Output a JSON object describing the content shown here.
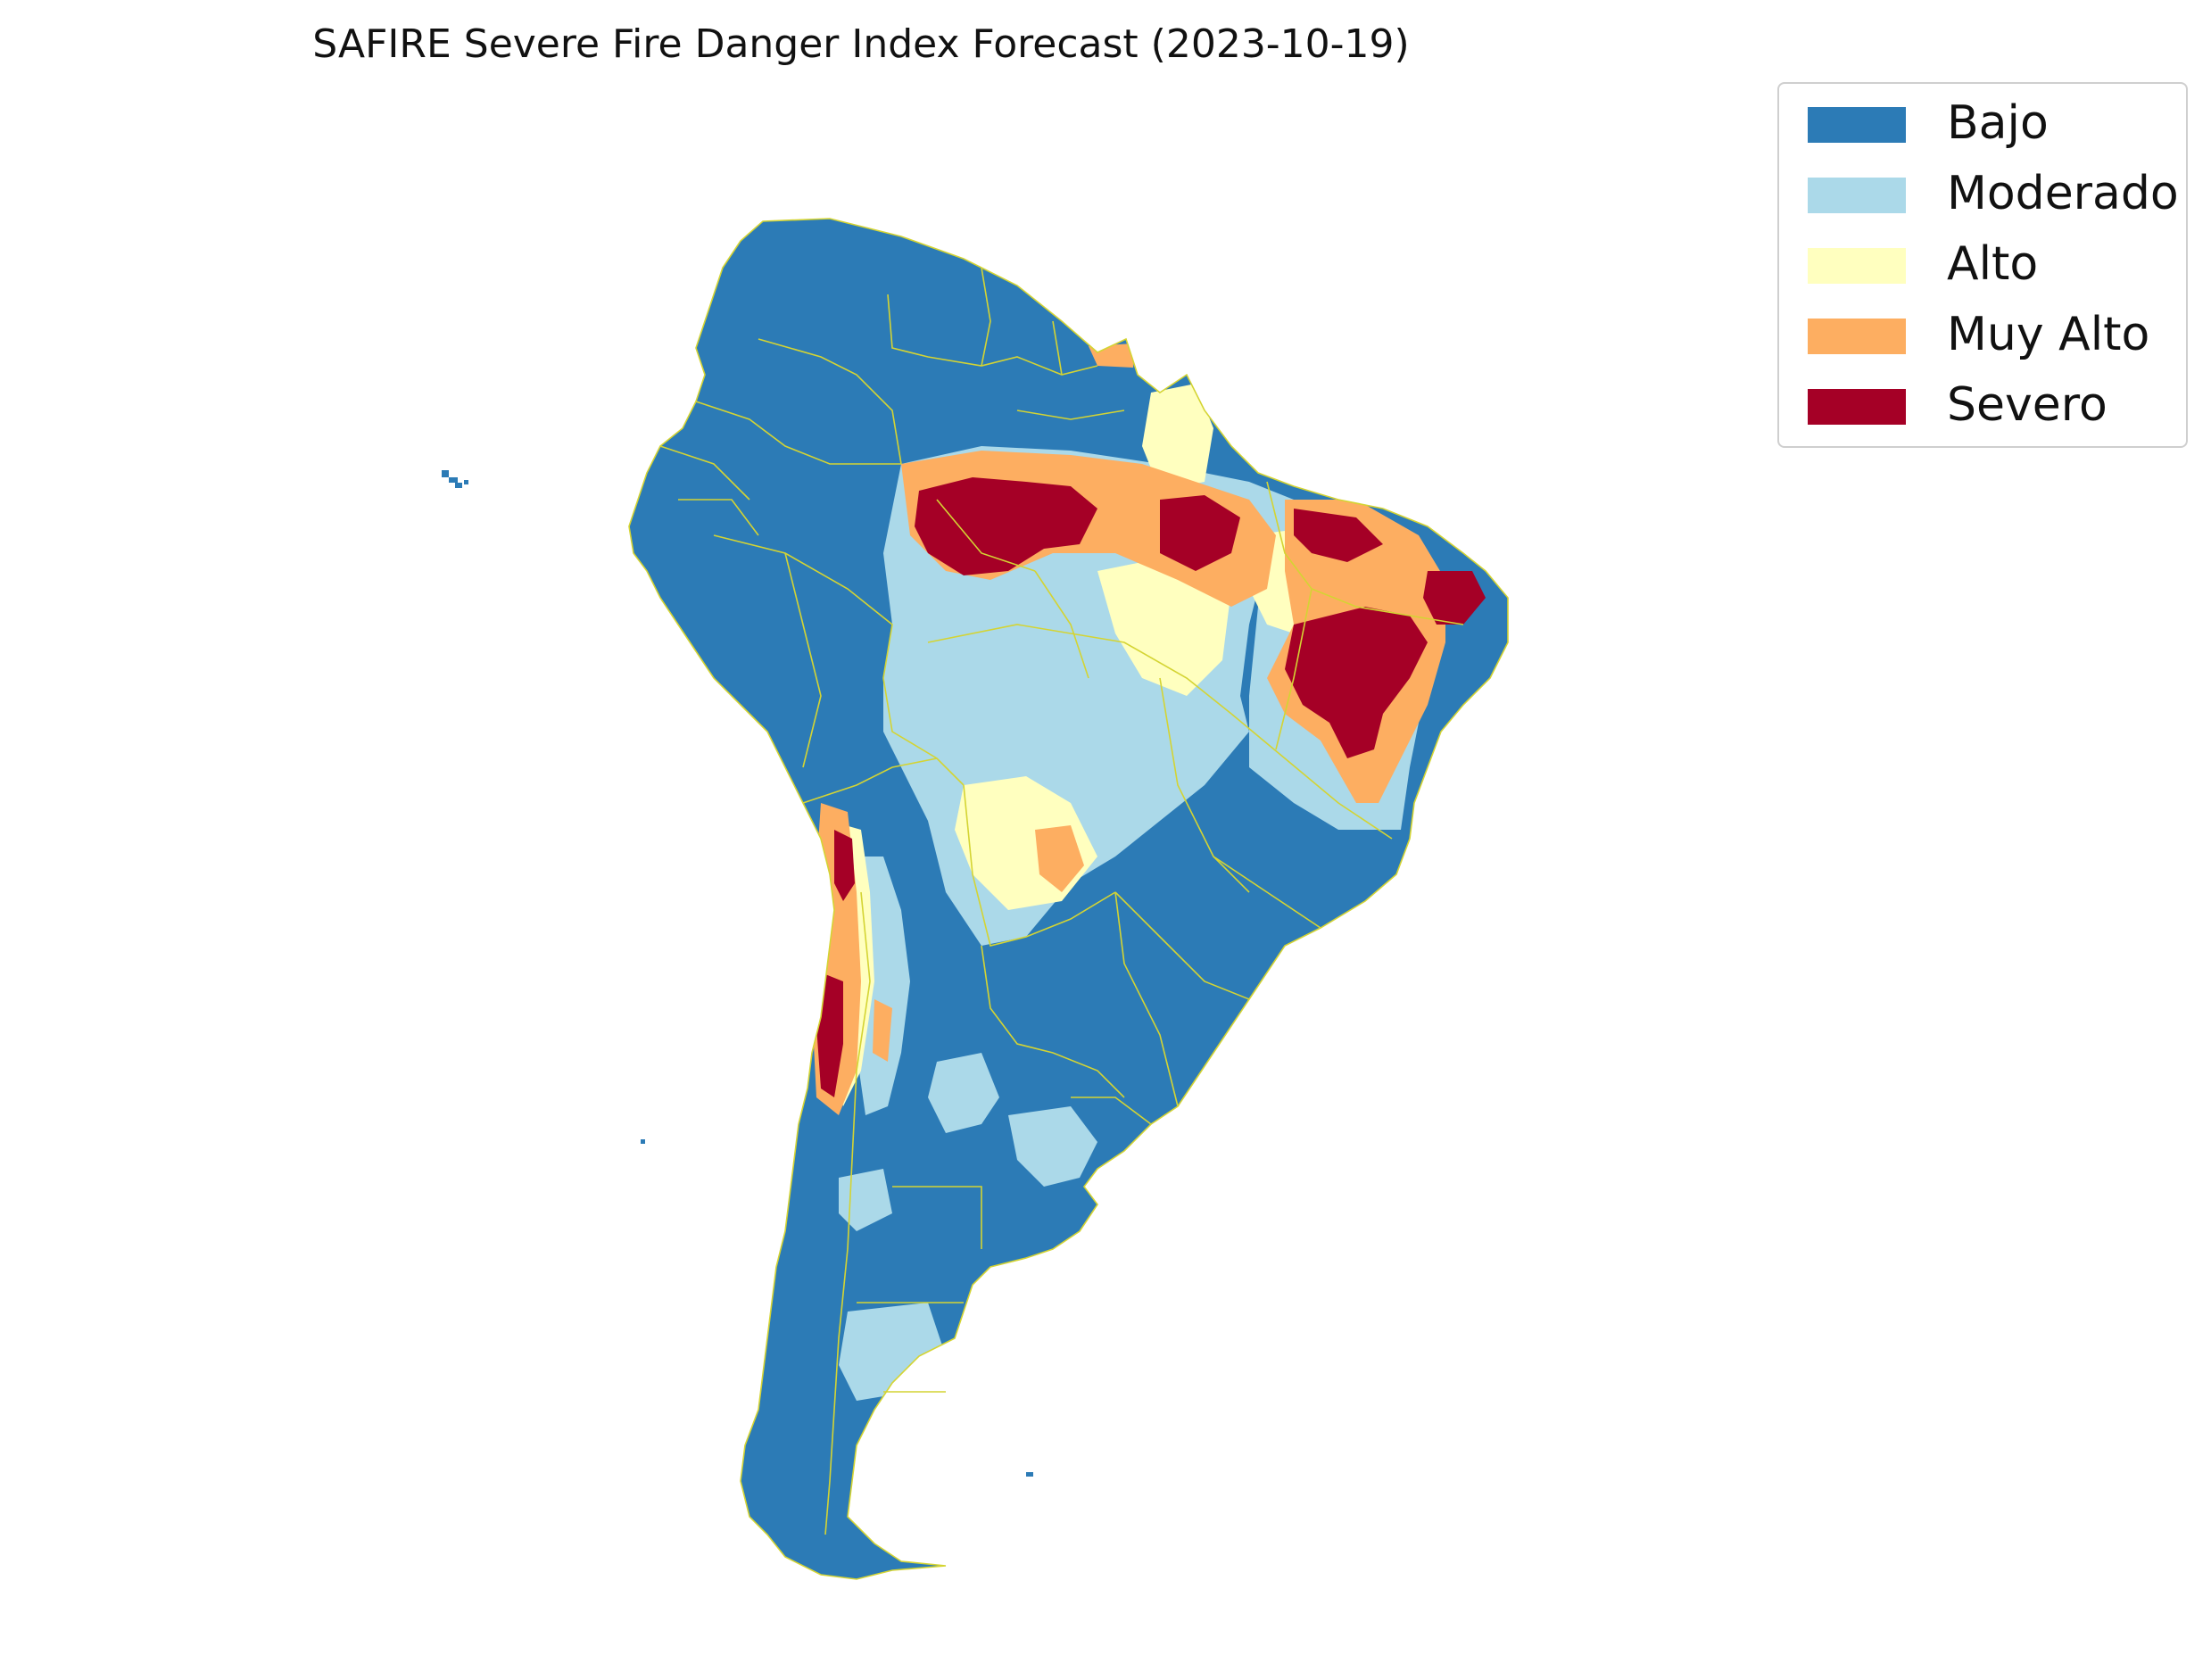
{
  "title": "SAFIRE Severe Fire Danger Index Forecast (2023-10-19)",
  "legend": [
    {
      "label": "Bajo",
      "color": "#2c7bb6"
    },
    {
      "label": "Moderado",
      "color": "#abd9e9"
    },
    {
      "label": "Alto",
      "color": "#ffffbf"
    },
    {
      "label": "Muy Alto",
      "color": "#fdae61"
    },
    {
      "label": "Severo",
      "color": "#a50026"
    }
  ],
  "colors": {
    "border": "#d4d433"
  },
  "map": {
    "region": "South America",
    "classification": "fire danger categories"
  }
}
